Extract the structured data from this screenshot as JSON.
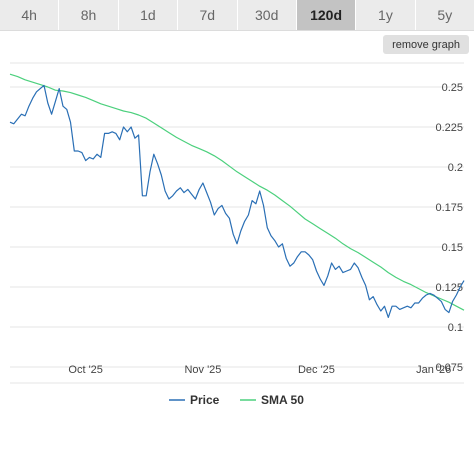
{
  "timeframes": {
    "items": [
      "4h",
      "8h",
      "1d",
      "7d",
      "30d",
      "120d",
      "1y",
      "5y"
    ],
    "active": "120d"
  },
  "controls": {
    "remove_graph_label": "remove graph"
  },
  "colors": {
    "price": "#2a6fb5",
    "sma": "#4cd07d",
    "grid": "#e6e6e6"
  },
  "chart_data": {
    "type": "line",
    "xlabel": "",
    "ylabel": "",
    "ylim": [
      0.065,
      0.265
    ],
    "yticks": [
      0.075,
      0.1,
      0.125,
      0.15,
      0.175,
      0.2,
      0.225,
      0.25
    ],
    "ytick_labels": [
      "0.075",
      "0.1",
      "0.125",
      "0.15",
      "0.175",
      "0.2",
      "0.225",
      "0.25"
    ],
    "xlim": [
      "2025-09-11",
      "2026-01-09"
    ],
    "xticks": [
      {
        "label": "Oct '25",
        "date": "2025-10-01"
      },
      {
        "label": "Nov '25",
        "date": "2025-11-01"
      },
      {
        "label": "Dec '25",
        "date": "2025-12-01"
      },
      {
        "label": "Jan '26",
        "date": "2026-01-01"
      }
    ],
    "legend_position": "bottom",
    "series": [
      {
        "name": "Price",
        "color": "#2a6fb5",
        "points": [
          [
            "2025-09-11",
            0.228
          ],
          [
            "2025-09-12",
            0.227
          ],
          [
            "2025-09-13",
            0.23
          ],
          [
            "2025-09-14",
            0.233
          ],
          [
            "2025-09-15",
            0.232
          ],
          [
            "2025-09-16",
            0.238
          ],
          [
            "2025-09-17",
            0.243
          ],
          [
            "2025-09-18",
            0.247
          ],
          [
            "2025-09-19",
            0.249
          ],
          [
            "2025-09-20",
            0.251
          ],
          [
            "2025-09-21",
            0.24
          ],
          [
            "2025-09-22",
            0.233
          ],
          [
            "2025-09-23",
            0.241
          ],
          [
            "2025-09-24",
            0.249
          ],
          [
            "2025-09-25",
            0.238
          ],
          [
            "2025-09-26",
            0.236
          ],
          [
            "2025-09-27",
            0.228
          ],
          [
            "2025-09-28",
            0.21
          ],
          [
            "2025-09-29",
            0.21
          ],
          [
            "2025-09-30",
            0.209
          ],
          [
            "2025-10-01",
            0.204
          ],
          [
            "2025-10-02",
            0.206
          ],
          [
            "2025-10-03",
            0.205
          ],
          [
            "2025-10-04",
            0.208
          ],
          [
            "2025-10-05",
            0.206
          ],
          [
            "2025-10-06",
            0.221
          ],
          [
            "2025-10-07",
            0.221
          ],
          [
            "2025-10-08",
            0.222
          ],
          [
            "2025-10-09",
            0.221
          ],
          [
            "2025-10-10",
            0.217
          ],
          [
            "2025-10-11",
            0.225
          ],
          [
            "2025-10-12",
            0.222
          ],
          [
            "2025-10-13",
            0.225
          ],
          [
            "2025-10-14",
            0.218
          ],
          [
            "2025-10-15",
            0.22
          ],
          [
            "2025-10-16",
            0.182
          ],
          [
            "2025-10-17",
            0.182
          ],
          [
            "2025-10-18",
            0.197
          ],
          [
            "2025-10-19",
            0.208
          ],
          [
            "2025-10-20",
            0.202
          ],
          [
            "2025-10-21",
            0.195
          ],
          [
            "2025-10-22",
            0.185
          ],
          [
            "2025-10-23",
            0.18
          ],
          [
            "2025-10-24",
            0.182
          ],
          [
            "2025-10-25",
            0.185
          ],
          [
            "2025-10-26",
            0.187
          ],
          [
            "2025-10-27",
            0.184
          ],
          [
            "2025-10-28",
            0.186
          ],
          [
            "2025-10-29",
            0.183
          ],
          [
            "2025-10-30",
            0.18
          ],
          [
            "2025-10-31",
            0.186
          ],
          [
            "2025-11-01",
            0.19
          ],
          [
            "2025-11-02",
            0.184
          ],
          [
            "2025-11-03",
            0.178
          ],
          [
            "2025-11-04",
            0.17
          ],
          [
            "2025-11-05",
            0.174
          ],
          [
            "2025-11-06",
            0.176
          ],
          [
            "2025-11-07",
            0.171
          ],
          [
            "2025-11-08",
            0.168
          ],
          [
            "2025-11-09",
            0.158
          ],
          [
            "2025-11-10",
            0.152
          ],
          [
            "2025-11-11",
            0.16
          ],
          [
            "2025-11-12",
            0.166
          ],
          [
            "2025-11-13",
            0.17
          ],
          [
            "2025-11-14",
            0.179
          ],
          [
            "2025-11-15",
            0.177
          ],
          [
            "2025-11-16",
            0.185
          ],
          [
            "2025-11-17",
            0.176
          ],
          [
            "2025-11-18",
            0.162
          ],
          [
            "2025-11-19",
            0.157
          ],
          [
            "2025-11-20",
            0.154
          ],
          [
            "2025-11-21",
            0.15
          ],
          [
            "2025-11-22",
            0.152
          ],
          [
            "2025-11-23",
            0.143
          ],
          [
            "2025-11-24",
            0.138
          ],
          [
            "2025-11-25",
            0.14
          ],
          [
            "2025-11-26",
            0.144
          ],
          [
            "2025-11-27",
            0.147
          ],
          [
            "2025-11-28",
            0.147
          ],
          [
            "2025-11-29",
            0.145
          ],
          [
            "2025-11-30",
            0.142
          ],
          [
            "2025-12-01",
            0.135
          ],
          [
            "2025-12-02",
            0.13
          ],
          [
            "2025-12-03",
            0.126
          ],
          [
            "2025-12-04",
            0.132
          ],
          [
            "2025-12-05",
            0.14
          ],
          [
            "2025-12-06",
            0.136
          ],
          [
            "2025-12-07",
            0.138
          ],
          [
            "2025-12-08",
            0.134
          ],
          [
            "2025-12-09",
            0.135
          ],
          [
            "2025-12-10",
            0.136
          ],
          [
            "2025-12-11",
            0.14
          ],
          [
            "2025-12-12",
            0.137
          ],
          [
            "2025-12-13",
            0.131
          ],
          [
            "2025-12-14",
            0.126
          ],
          [
            "2025-12-15",
            0.117
          ],
          [
            "2025-12-16",
            0.119
          ],
          [
            "2025-12-17",
            0.114
          ],
          [
            "2025-12-18",
            0.11
          ],
          [
            "2025-12-19",
            0.113
          ],
          [
            "2025-12-20",
            0.106
          ],
          [
            "2025-12-21",
            0.113
          ],
          [
            "2025-12-22",
            0.113
          ],
          [
            "2025-12-23",
            0.111
          ],
          [
            "2025-12-24",
            0.112
          ],
          [
            "2025-12-25",
            0.113
          ],
          [
            "2025-12-26",
            0.112
          ],
          [
            "2025-12-27",
            0.115
          ],
          [
            "2025-12-28",
            0.115
          ],
          [
            "2025-12-29",
            0.118
          ],
          [
            "2025-12-30",
            0.12
          ],
          [
            "2025-12-31",
            0.121
          ],
          [
            "2026-01-01",
            0.12
          ],
          [
            "2026-01-02",
            0.118
          ],
          [
            "2026-01-03",
            0.116
          ],
          [
            "2026-01-04",
            0.111
          ],
          [
            "2026-01-05",
            0.109
          ],
          [
            "2026-01-06",
            0.116
          ],
          [
            "2026-01-07",
            0.12
          ],
          [
            "2026-01-08",
            0.125
          ],
          [
            "2026-01-09",
            0.129
          ]
        ]
      },
      {
        "name": "SMA 50",
        "color": "#4cd07d",
        "points": [
          [
            "2025-09-11",
            0.258
          ],
          [
            "2025-09-13",
            0.2565
          ],
          [
            "2025-09-15",
            0.2545
          ],
          [
            "2025-09-17",
            0.253
          ],
          [
            "2025-09-19",
            0.2515
          ],
          [
            "2025-09-21",
            0.25
          ],
          [
            "2025-09-23",
            0.248
          ],
          [
            "2025-09-25",
            0.2475
          ],
          [
            "2025-09-27",
            0.2465
          ],
          [
            "2025-09-29",
            0.245
          ],
          [
            "2025-10-01",
            0.2435
          ],
          [
            "2025-10-03",
            0.2415
          ],
          [
            "2025-10-05",
            0.2395
          ],
          [
            "2025-10-07",
            0.238
          ],
          [
            "2025-10-09",
            0.2365
          ],
          [
            "2025-10-11",
            0.235
          ],
          [
            "2025-10-13",
            0.234
          ],
          [
            "2025-10-15",
            0.2325
          ],
          [
            "2025-10-17",
            0.2305
          ],
          [
            "2025-10-19",
            0.2275
          ],
          [
            "2025-10-21",
            0.2245
          ],
          [
            "2025-10-23",
            0.2215
          ],
          [
            "2025-10-25",
            0.2185
          ],
          [
            "2025-10-27",
            0.216
          ],
          [
            "2025-10-29",
            0.2135
          ],
          [
            "2025-10-31",
            0.2115
          ],
          [
            "2025-11-02",
            0.2095
          ],
          [
            "2025-11-04",
            0.207
          ],
          [
            "2025-11-06",
            0.204
          ],
          [
            "2025-11-08",
            0.2005
          ],
          [
            "2025-11-10",
            0.197
          ],
          [
            "2025-11-12",
            0.194
          ],
          [
            "2025-11-14",
            0.191
          ],
          [
            "2025-11-16",
            0.188
          ],
          [
            "2025-11-18",
            0.1855
          ],
          [
            "2025-11-20",
            0.1825
          ],
          [
            "2025-11-22",
            0.179
          ],
          [
            "2025-11-24",
            0.1755
          ],
          [
            "2025-11-26",
            0.1715
          ],
          [
            "2025-11-28",
            0.1675
          ],
          [
            "2025-11-30",
            0.1645
          ],
          [
            "2025-12-02",
            0.1615
          ],
          [
            "2025-12-04",
            0.1585
          ],
          [
            "2025-12-06",
            0.1555
          ],
          [
            "2025-12-08",
            0.152
          ],
          [
            "2025-12-10",
            0.149
          ],
          [
            "2025-12-12",
            0.1465
          ],
          [
            "2025-12-14",
            0.1435
          ],
          [
            "2025-12-16",
            0.1405
          ],
          [
            "2025-12-18",
            0.1375
          ],
          [
            "2025-12-20",
            0.134
          ],
          [
            "2025-12-22",
            0.131
          ],
          [
            "2025-12-24",
            0.1285
          ],
          [
            "2025-12-26",
            0.1265
          ],
          [
            "2025-12-28",
            0.124
          ],
          [
            "2025-12-30",
            0.1215
          ],
          [
            "2026-01-01",
            0.1195
          ],
          [
            "2026-01-03",
            0.1175
          ],
          [
            "2026-01-05",
            0.1155
          ],
          [
            "2026-01-07",
            0.113
          ],
          [
            "2026-01-09",
            0.1105
          ]
        ]
      }
    ]
  }
}
